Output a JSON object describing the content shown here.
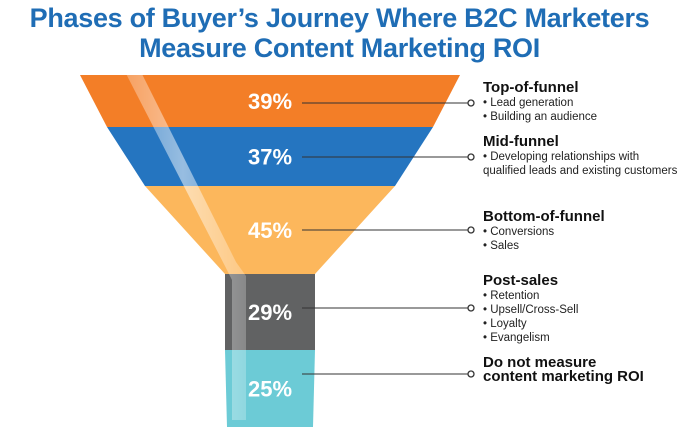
{
  "title_lines": [
    "Phases of Buyer’s Journey Where B2C Marketers",
    "Measure Content Marketing ROI"
  ],
  "chart_data": {
    "type": "funnel",
    "unit": "%",
    "stages": [
      {
        "value": 39,
        "label": "39%",
        "title": "Top-of-funnel",
        "items": [
          "• Lead generation",
          "• Building an audience"
        ],
        "color": "#f37e27"
      },
      {
        "value": 37,
        "label": "37%",
        "title": "Mid-funnel",
        "items": [
          "• Developing relationships with",
          "qualified leads and existing customers"
        ],
        "color": "#2575c0"
      },
      {
        "value": 45,
        "label": "45%",
        "title": "Bottom-of-funnel",
        "items": [
          "• Conversions",
          "• Sales"
        ],
        "color": "#fcb75c"
      },
      {
        "value": 29,
        "label": "29%",
        "title": "Post-sales",
        "items": [
          "• Retention",
          "• Upsell/Cross-Sell",
          "• Loyalty",
          "• Evangelism"
        ],
        "color": "#616263"
      },
      {
        "value": 25,
        "label": "25%",
        "title": "Do not measure",
        "title2": "content marketing ROI",
        "items": [],
        "color": "#6ccbd6"
      }
    ]
  }
}
